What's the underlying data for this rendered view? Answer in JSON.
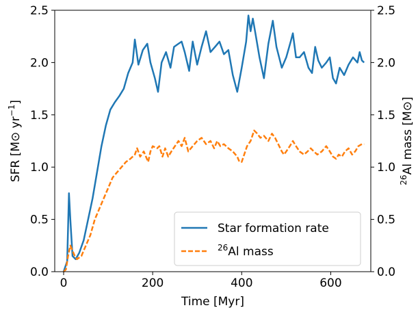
{
  "chart_data": {
    "type": "line",
    "xlabel": "Time [Myr]",
    "ylabel_left": {
      "main": "SFR [M",
      "sun": "⊙",
      "rest": " yr",
      "sup": "−1",
      "close": "]"
    },
    "ylabel_right": {
      "sup": "26",
      "main": "Al mass [M",
      "sun": "⊙",
      "close": "]"
    },
    "xlim": [
      -20,
      690
    ],
    "ylim": [
      0,
      2.5
    ],
    "xticks": [
      0,
      200,
      400,
      600
    ],
    "yticks_left": [
      "0.0",
      "0.5",
      "1.0",
      "1.5",
      "2.0",
      "2.5"
    ],
    "yticks_right": [
      "0.0",
      "0.5",
      "1.0",
      "1.5",
      "2.0",
      "2.5"
    ],
    "legend_position": "lower-right",
    "series": [
      {
        "name": "Star formation rate",
        "color": "#1f77b4",
        "style": "solid",
        "axis": "left",
        "points": [
          [
            0,
            0
          ],
          [
            8,
            0.1
          ],
          [
            12,
            0.75
          ],
          [
            15,
            0.5
          ],
          [
            20,
            0.15
          ],
          [
            27,
            0.12
          ],
          [
            35,
            0.18
          ],
          [
            45,
            0.3
          ],
          [
            55,
            0.5
          ],
          [
            65,
            0.7
          ],
          [
            75,
            0.95
          ],
          [
            85,
            1.2
          ],
          [
            95,
            1.4
          ],
          [
            105,
            1.55
          ],
          [
            115,
            1.62
          ],
          [
            125,
            1.68
          ],
          [
            135,
            1.75
          ],
          [
            145,
            1.9
          ],
          [
            155,
            2.0
          ],
          [
            160,
            2.22
          ],
          [
            168,
            1.98
          ],
          [
            178,
            2.12
          ],
          [
            188,
            2.18
          ],
          [
            195,
            2.0
          ],
          [
            205,
            1.85
          ],
          [
            212,
            1.72
          ],
          [
            220,
            2.0
          ],
          [
            230,
            2.1
          ],
          [
            240,
            1.95
          ],
          [
            248,
            2.15
          ],
          [
            258,
            2.18
          ],
          [
            265,
            2.2
          ],
          [
            272,
            2.1
          ],
          [
            282,
            1.92
          ],
          [
            290,
            2.2
          ],
          [
            300,
            1.98
          ],
          [
            310,
            2.15
          ],
          [
            320,
            2.3
          ],
          [
            330,
            2.1
          ],
          [
            340,
            2.15
          ],
          [
            350,
            2.2
          ],
          [
            360,
            2.08
          ],
          [
            370,
            2.12
          ],
          [
            380,
            1.88
          ],
          [
            390,
            1.72
          ],
          [
            400,
            1.95
          ],
          [
            410,
            2.2
          ],
          [
            415,
            2.45
          ],
          [
            420,
            2.3
          ],
          [
            425,
            2.42
          ],
          [
            432,
            2.25
          ],
          [
            440,
            2.05
          ],
          [
            450,
            1.85
          ],
          [
            460,
            2.18
          ],
          [
            470,
            2.4
          ],
          [
            478,
            2.15
          ],
          [
            490,
            1.95
          ],
          [
            500,
            2.05
          ],
          [
            510,
            2.2
          ],
          [
            515,
            2.28
          ],
          [
            522,
            2.05
          ],
          [
            530,
            2.05
          ],
          [
            540,
            2.1
          ],
          [
            550,
            1.95
          ],
          [
            558,
            1.9
          ],
          [
            565,
            2.15
          ],
          [
            572,
            2.02
          ],
          [
            580,
            1.95
          ],
          [
            590,
            2.0
          ],
          [
            598,
            2.05
          ],
          [
            605,
            1.85
          ],
          [
            612,
            1.8
          ],
          [
            620,
            1.95
          ],
          [
            630,
            1.88
          ],
          [
            640,
            1.98
          ],
          [
            650,
            2.05
          ],
          [
            660,
            2.0
          ],
          [
            665,
            2.1
          ],
          [
            670,
            2.02
          ],
          [
            675,
            2.0
          ]
        ]
      },
      {
        "name": "26Al mass",
        "name_sup": "26",
        "name_text": "Al mass",
        "color": "#ff7f0e",
        "style": "dashed",
        "axis": "right",
        "points": [
          [
            0,
            0
          ],
          [
            5,
            0.02
          ],
          [
            10,
            0.15
          ],
          [
            15,
            0.25
          ],
          [
            20,
            0.2
          ],
          [
            25,
            0.15
          ],
          [
            30,
            0.12
          ],
          [
            40,
            0.15
          ],
          [
            50,
            0.25
          ],
          [
            60,
            0.35
          ],
          [
            70,
            0.5
          ],
          [
            80,
            0.6
          ],
          [
            90,
            0.7
          ],
          [
            100,
            0.8
          ],
          [
            110,
            0.9
          ],
          [
            120,
            0.95
          ],
          [
            130,
            1.0
          ],
          [
            140,
            1.05
          ],
          [
            150,
            1.08
          ],
          [
            160,
            1.12
          ],
          [
            165,
            1.18
          ],
          [
            172,
            1.1
          ],
          [
            180,
            1.15
          ],
          [
            190,
            1.05
          ],
          [
            195,
            1.15
          ],
          [
            200,
            1.2
          ],
          [
            210,
            1.18
          ],
          [
            215,
            1.2
          ],
          [
            222,
            1.1
          ],
          [
            228,
            1.18
          ],
          [
            235,
            1.1
          ],
          [
            242,
            1.15
          ],
          [
            250,
            1.2
          ],
          [
            258,
            1.25
          ],
          [
            265,
            1.2
          ],
          [
            272,
            1.28
          ],
          [
            280,
            1.15
          ],
          [
            290,
            1.2
          ],
          [
            300,
            1.25
          ],
          [
            310,
            1.28
          ],
          [
            320,
            1.22
          ],
          [
            330,
            1.25
          ],
          [
            338,
            1.18
          ],
          [
            345,
            1.25
          ],
          [
            352,
            1.2
          ],
          [
            360,
            1.22
          ],
          [
            370,
            1.18
          ],
          [
            380,
            1.15
          ],
          [
            390,
            1.1
          ],
          [
            395,
            1.05
          ],
          [
            400,
            1.05
          ],
          [
            408,
            1.15
          ],
          [
            412,
            1.2
          ],
          [
            420,
            1.25
          ],
          [
            428,
            1.35
          ],
          [
            435,
            1.32
          ],
          [
            442,
            1.28
          ],
          [
            450,
            1.3
          ],
          [
            460,
            1.25
          ],
          [
            468,
            1.32
          ],
          [
            475,
            1.28
          ],
          [
            482,
            1.22
          ],
          [
            490,
            1.15
          ],
          [
            495,
            1.12
          ],
          [
            500,
            1.15
          ],
          [
            508,
            1.2
          ],
          [
            515,
            1.25
          ],
          [
            522,
            1.2
          ],
          [
            530,
            1.15
          ],
          [
            540,
            1.12
          ],
          [
            548,
            1.15
          ],
          [
            555,
            1.18
          ],
          [
            562,
            1.15
          ],
          [
            570,
            1.12
          ],
          [
            580,
            1.15
          ],
          [
            590,
            1.2
          ],
          [
            598,
            1.15
          ],
          [
            605,
            1.1
          ],
          [
            612,
            1.08
          ],
          [
            618,
            1.12
          ],
          [
            625,
            1.1
          ],
          [
            632,
            1.15
          ],
          [
            640,
            1.18
          ],
          [
            648,
            1.12
          ],
          [
            655,
            1.15
          ],
          [
            662,
            1.2
          ],
          [
            670,
            1.22
          ],
          [
            675,
            1.22
          ]
        ]
      }
    ]
  }
}
